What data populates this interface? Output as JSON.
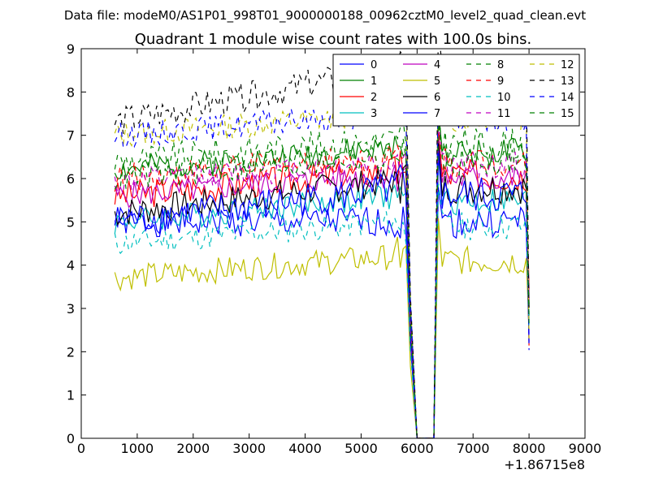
{
  "chart_data": {
    "type": "line",
    "suptitle": "Data file: modeM0/AS1P01_998T01_9000000188_00962cztM0_level2_quad_clean.evt",
    "title": "Quadrant 1 module wise count rates with 100.0s bins.",
    "xlabel": "",
    "ylabel": "",
    "x_offset_label": "+1.86715e8",
    "xlim": [
      0,
      9000
    ],
    "ylim": [
      0,
      9
    ],
    "x_ticks": [
      0,
      1000,
      2000,
      3000,
      4000,
      5000,
      6000,
      7000,
      8000,
      9000
    ],
    "y_ticks": [
      0,
      1,
      2,
      3,
      4,
      5,
      6,
      7,
      8,
      9
    ],
    "x_tick_labels": [
      "0",
      "1000",
      "2000",
      "3000",
      "4000",
      "5000",
      "6000",
      "7000",
      "8000",
      "9000"
    ],
    "y_tick_labels": [
      "0",
      "1",
      "2",
      "3",
      "4",
      "5",
      "6",
      "7",
      "8",
      "9"
    ],
    "legend_position": "top-right",
    "legend_columns": 4,
    "x_segments": [
      [
        600,
        5800
      ],
      [
        5900,
        6000
      ],
      [
        6000,
        6300
      ],
      [
        6300,
        8000
      ]
    ],
    "gap_segment_series_visible": [
      7
    ],
    "series": [
      {
        "name": "0",
        "color": "#0000ff",
        "style": "solid",
        "base": 5.0,
        "slope": 0.0,
        "amp": 0.35,
        "seed": 1
      },
      {
        "name": "1",
        "color": "#008000",
        "style": "solid",
        "base": 6.2,
        "slope": 0.0001,
        "amp": 0.3,
        "seed": 2
      },
      {
        "name": "2",
        "color": "#ff0000",
        "style": "solid",
        "base": 5.6,
        "slope": 0.00012,
        "amp": 0.35,
        "seed": 3
      },
      {
        "name": "3",
        "color": "#00bfbf",
        "style": "solid",
        "base": 5.0,
        "slope": 0.00012,
        "amp": 0.3,
        "seed": 4
      },
      {
        "name": "4",
        "color": "#bf00bf",
        "style": "solid",
        "base": 5.6,
        "slope": 0.0001,
        "amp": 0.3,
        "seed": 5
      },
      {
        "name": "5",
        "color": "#bfbf00",
        "style": "solid",
        "base": 3.7,
        "slope": 0.0001,
        "amp": 0.3,
        "seed": 6
      },
      {
        "name": "6",
        "color": "#000000",
        "style": "solid",
        "base": 5.2,
        "slope": 0.00015,
        "amp": 0.35,
        "seed": 7
      },
      {
        "name": "7",
        "color": "#0000ff",
        "style": "solid",
        "base": 5.0,
        "slope": 0.00015,
        "amp": 0.4,
        "seed": 8
      },
      {
        "name": "8",
        "color": "#008000",
        "style": "dashed",
        "base": 6.4,
        "slope": 0.0001,
        "amp": 0.35,
        "seed": 9
      },
      {
        "name": "9",
        "color": "#ff0000",
        "style": "dashed",
        "base": 6.0,
        "slope": 0.0001,
        "amp": 0.35,
        "seed": 10
      },
      {
        "name": "10",
        "color": "#00bfbf",
        "style": "dashed",
        "base": 4.5,
        "slope": 0.0001,
        "amp": 0.3,
        "seed": 11
      },
      {
        "name": "11",
        "color": "#bf00bf",
        "style": "dashed",
        "base": 5.9,
        "slope": 0.0001,
        "amp": 0.3,
        "seed": 12
      },
      {
        "name": "12",
        "color": "#bfbf00",
        "style": "dashed",
        "base": 7.0,
        "slope": 0.0001,
        "amp": 0.3,
        "seed": 13
      },
      {
        "name": "13",
        "color": "#000000",
        "style": "dashed",
        "base": 7.3,
        "slope": 0.00025,
        "amp": 0.35,
        "seed": 14
      },
      {
        "name": "14",
        "color": "#0000ff",
        "style": "dashed",
        "base": 7.0,
        "slope": 0.0001,
        "amp": 0.3,
        "seed": 15
      },
      {
        "name": "15",
        "color": "#008000",
        "style": "dashed",
        "base": 6.0,
        "slope": 0.0001,
        "amp": 0.3,
        "seed": 16
      }
    ]
  }
}
